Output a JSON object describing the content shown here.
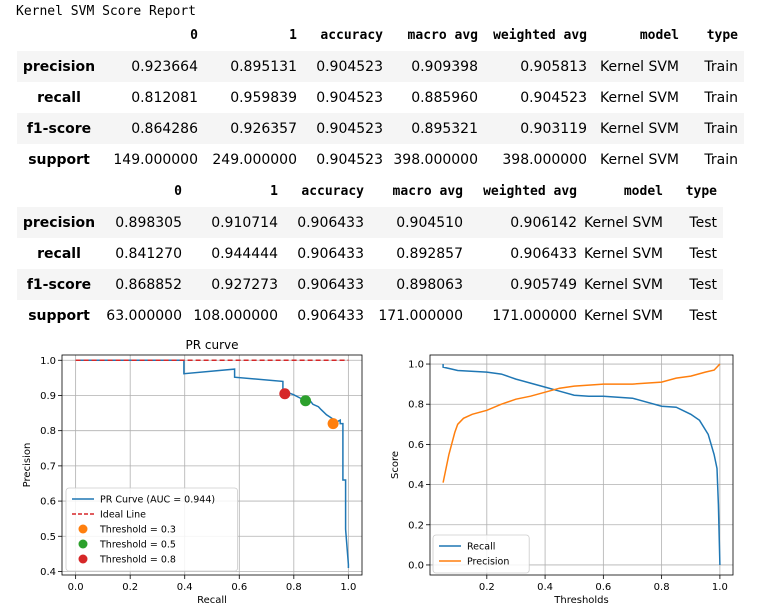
{
  "report_title": "Kernel SVM Score Report",
  "tables": [
    {
      "columns": [
        "0",
        "1",
        "accuracy",
        "macro avg",
        "weighted avg",
        "model",
        "type"
      ],
      "rows": [
        {
          "label": "precision",
          "cells": [
            "0.923664",
            "0.895131",
            "0.904523",
            "0.909398",
            "0.905813",
            "Kernel SVM",
            "Train"
          ]
        },
        {
          "label": "recall",
          "cells": [
            "0.812081",
            "0.959839",
            "0.904523",
            "0.885960",
            "0.904523",
            "Kernel SVM",
            "Train"
          ]
        },
        {
          "label": "f1-score",
          "cells": [
            "0.864286",
            "0.926357",
            "0.904523",
            "0.895321",
            "0.903119",
            "Kernel SVM",
            "Train"
          ]
        },
        {
          "label": "support",
          "cells": [
            "149.000000",
            "249.000000",
            "0.904523",
            "398.000000",
            "398.000000",
            "Kernel SVM",
            "Train"
          ]
        }
      ]
    },
    {
      "columns": [
        "0",
        "1",
        "accuracy",
        "macro avg",
        "weighted avg",
        "model",
        "type"
      ],
      "rows": [
        {
          "label": "precision",
          "cells": [
            "0.898305",
            "0.910714",
            "0.906433",
            "0.904510",
            "0.906142",
            "Kernel SVM",
            "Test"
          ]
        },
        {
          "label": "recall",
          "cells": [
            "0.841270",
            "0.944444",
            "0.906433",
            "0.892857",
            "0.906433",
            "Kernel SVM",
            "Test"
          ]
        },
        {
          "label": "f1-score",
          "cells": [
            "0.868852",
            "0.927273",
            "0.906433",
            "0.898063",
            "0.905749",
            "Kernel SVM",
            "Test"
          ]
        },
        {
          "label": "support",
          "cells": [
            "63.000000",
            "108.000000",
            "0.906433",
            "171.000000",
            "171.000000",
            "Kernel SVM",
            "Test"
          ]
        }
      ]
    }
  ],
  "chart_data": [
    {
      "type": "line",
      "title": "PR curve",
      "xlabel": "Recall",
      "ylabel": "Precision",
      "xlim": [
        -0.05,
        1.05
      ],
      "ylim": [
        0.39,
        1.015
      ],
      "xticks": [
        "0.0",
        "0.2",
        "0.4",
        "0.6",
        "0.8",
        "1.0"
      ],
      "yticks": [
        "0.4",
        "0.5",
        "0.6",
        "0.7",
        "0.8",
        "0.9",
        "1.0"
      ],
      "grid": true,
      "legend": "lower-left",
      "series": [
        {
          "name": "PR Curve (AUC = 0.944)",
          "color": "#1f77b4",
          "style": "solid",
          "x": [
            0.0,
            0.397,
            0.397,
            0.583,
            0.583,
            0.76,
            0.76,
            0.78,
            0.8,
            0.83,
            0.85,
            0.87,
            0.89,
            0.9,
            0.92,
            0.94,
            0.96,
            0.97,
            0.97,
            0.98,
            0.98,
            0.99,
            0.99,
            1.0,
            1.0
          ],
          "y": [
            1.0,
            1.0,
            0.962,
            0.975,
            0.952,
            0.94,
            0.917,
            0.908,
            0.902,
            0.89,
            0.895,
            0.875,
            0.868,
            0.86,
            0.845,
            0.835,
            0.826,
            0.83,
            0.82,
            0.82,
            0.66,
            0.66,
            0.52,
            0.42,
            0.41
          ]
        },
        {
          "name": "Ideal Line",
          "color": "#d62728",
          "style": "dashed",
          "x": [
            0.0,
            1.0
          ],
          "y": [
            1.0,
            1.0
          ]
        }
      ],
      "points": [
        {
          "name": "Threshold = 0.3",
          "color": "#ff7f0e",
          "x": 0.944,
          "y": 0.82
        },
        {
          "name": "Threshold = 0.5",
          "color": "#2ca02c",
          "x": 0.843,
          "y": 0.885
        },
        {
          "name": "Threshold = 0.8",
          "color": "#d62728",
          "x": 0.767,
          "y": 0.905
        }
      ]
    },
    {
      "type": "line",
      "title": "",
      "xlabel": "Thresholds",
      "ylabel": "Score",
      "xlim": [
        0.005,
        1.045
      ],
      "ylim": [
        -0.05,
        1.045
      ],
      "xticks": [
        "0.2",
        "0.4",
        "0.6",
        "0.8",
        "1.0"
      ],
      "yticks": [
        "0.0",
        "0.2",
        "0.4",
        "0.6",
        "0.8",
        "1.0"
      ],
      "grid": true,
      "legend": "lower-left",
      "series": [
        {
          "name": "Recall",
          "color": "#1f77b4",
          "x": [
            0.05,
            0.05,
            0.08,
            0.1,
            0.2,
            0.25,
            0.3,
            0.35,
            0.4,
            0.45,
            0.5,
            0.55,
            0.6,
            0.7,
            0.8,
            0.85,
            0.9,
            0.93,
            0.96,
            0.98,
            0.99,
            0.995,
            1.0
          ],
          "y": [
            1.0,
            0.985,
            0.975,
            0.968,
            0.96,
            0.95,
            0.925,
            0.905,
            0.885,
            0.865,
            0.845,
            0.84,
            0.84,
            0.83,
            0.79,
            0.785,
            0.75,
            0.72,
            0.65,
            0.55,
            0.48,
            0.3,
            0.0
          ]
        },
        {
          "name": "Precision",
          "color": "#ff7f0e",
          "x": [
            0.05,
            0.07,
            0.09,
            0.1,
            0.12,
            0.15,
            0.2,
            0.25,
            0.3,
            0.35,
            0.4,
            0.45,
            0.5,
            0.6,
            0.7,
            0.8,
            0.85,
            0.9,
            0.95,
            0.98,
            1.0
          ],
          "y": [
            0.41,
            0.55,
            0.66,
            0.7,
            0.73,
            0.75,
            0.77,
            0.8,
            0.825,
            0.84,
            0.86,
            0.88,
            0.89,
            0.9,
            0.9,
            0.91,
            0.93,
            0.94,
            0.96,
            0.97,
            1.0
          ]
        }
      ]
    }
  ]
}
